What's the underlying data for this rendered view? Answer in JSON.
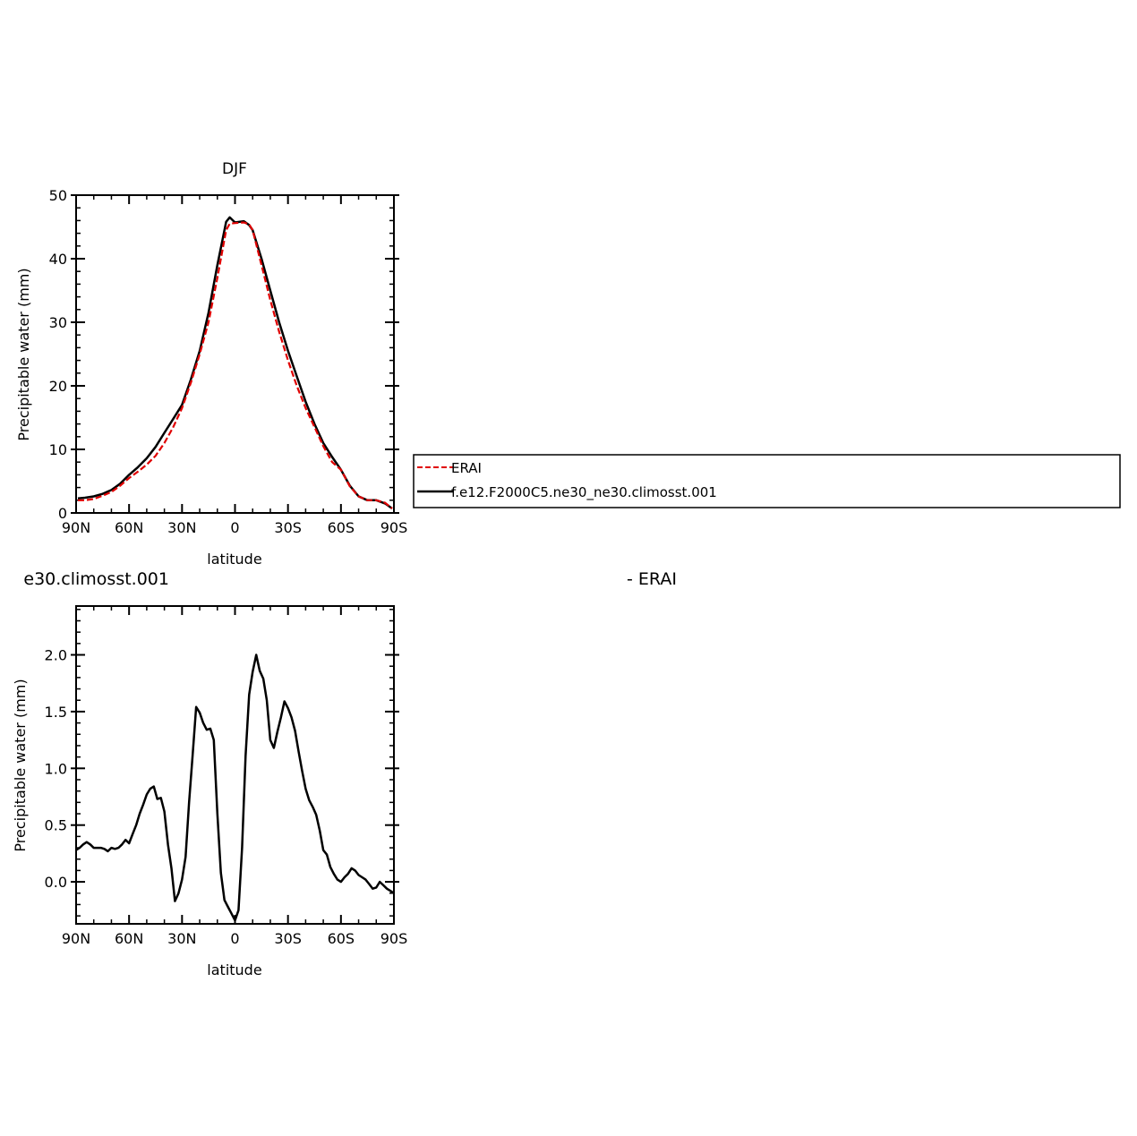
{
  "chart_data": [
    {
      "type": "line",
      "title": "DJF",
      "xlabel": "latitude",
      "ylabel": "Precipitable water (mm)",
      "xlim": [
        90,
        -90
      ],
      "ylim": [
        0,
        50
      ],
      "xticks": [
        90,
        60,
        30,
        0,
        -30,
        -60,
        -90
      ],
      "xtick_labels": [
        "90N",
        "60N",
        "30N",
        "0",
        "30S",
        "60S",
        "90S"
      ],
      "yticks": [
        0,
        10,
        20,
        30,
        40,
        50
      ],
      "ytick_labels": [
        "0",
        "10",
        "20",
        "30",
        "40",
        "50"
      ],
      "legend": "right",
      "series": [
        {
          "name": "ERAI",
          "color": "#e00000",
          "dash": "dashed",
          "x": [
            89,
            85,
            80,
            75,
            70,
            65,
            60,
            55,
            50,
            45,
            40,
            35,
            30,
            25,
            20,
            15,
            10,
            5,
            3,
            0,
            -5,
            -8,
            -10,
            -15,
            -20,
            -25,
            -30,
            -35,
            -40,
            -45,
            -50,
            -55,
            -60,
            -65,
            -70,
            -75,
            -80,
            -85,
            -89
          ],
          "y": [
            2.0,
            2.0,
            2.2,
            2.7,
            3.3,
            4.3,
            5.5,
            6.5,
            7.6,
            9.0,
            11.0,
            13.5,
            16.5,
            20.5,
            25.0,
            30.0,
            37.0,
            44.5,
            45.5,
            45.6,
            45.7,
            45.4,
            44.5,
            39.0,
            33.5,
            28.5,
            24.0,
            20.0,
            16.5,
            13.5,
            10.5,
            8.0,
            6.8,
            4.2,
            2.6,
            2.0,
            2.0,
            1.6,
            0.7
          ]
        },
        {
          "name": "f.e12.F2000C5.ne30_ne30.climosst.001",
          "color": "#000000",
          "dash": "solid",
          "x": [
            89,
            85,
            80,
            75,
            70,
            65,
            60,
            55,
            50,
            45,
            40,
            35,
            30,
            25,
            20,
            15,
            10,
            5,
            3,
            0,
            -5,
            -8,
            -10,
            -15,
            -20,
            -25,
            -30,
            -35,
            -40,
            -45,
            -50,
            -55,
            -60,
            -65,
            -70,
            -75,
            -80,
            -85,
            -89
          ],
          "y": [
            2.3,
            2.4,
            2.6,
            3.0,
            3.6,
            4.6,
            6.0,
            7.2,
            8.6,
            10.4,
            12.6,
            14.8,
            17.0,
            21.0,
            25.5,
            31.5,
            39.0,
            45.8,
            46.5,
            45.7,
            45.9,
            45.3,
            44.5,
            40.0,
            35.0,
            30.0,
            25.5,
            21.5,
            17.5,
            14.0,
            11.0,
            8.8,
            6.8,
            4.3,
            2.6,
            2.0,
            2.0,
            1.5,
            0.7
          ]
        }
      ]
    },
    {
      "type": "line",
      "title": "e30.climosst.001",
      "right_title": "- ERAI",
      "xlabel": "latitude",
      "ylabel": "Precipitable water (mm)",
      "xlim": [
        90,
        -90
      ],
      "ylim": [
        -0.37,
        2.43
      ],
      "xticks": [
        90,
        60,
        30,
        0,
        -30,
        -60,
        -90
      ],
      "xtick_labels": [
        "90N",
        "60N",
        "30N",
        "0",
        "30S",
        "60S",
        "90S"
      ],
      "yticks": [
        0.0,
        0.5,
        1.0,
        1.5,
        2.0
      ],
      "ytick_labels": [
        "0.0",
        "0.5",
        "1.0",
        "1.5",
        "2.0"
      ],
      "series": [
        {
          "name": "",
          "color": "#000000",
          "dash": "solid",
          "x": [
            90,
            88,
            86,
            84,
            82,
            80,
            78,
            76,
            74,
            72,
            70,
            68,
            66,
            64,
            62,
            60,
            58,
            56,
            54,
            52,
            50,
            48,
            46,
            44,
            42,
            40,
            38,
            36,
            34,
            32,
            30,
            28,
            26,
            24,
            22,
            20,
            18,
            16,
            14,
            12,
            10,
            8,
            6,
            4,
            2,
            0,
            -2,
            -4,
            -6,
            -8,
            -10,
            -12,
            -14,
            -16,
            -18,
            -20,
            -22,
            -24,
            -26,
            -28,
            -30,
            -32,
            -34,
            -36,
            -38,
            -40,
            -42,
            -44,
            -46,
            -48,
            -50,
            -52,
            -54,
            -56,
            -58,
            -60,
            -62,
            -64,
            -66,
            -68,
            -70,
            -72,
            -74,
            -76,
            -78,
            -80,
            -82,
            -84,
            -86,
            -88,
            -90
          ],
          "y": [
            0.28,
            0.3,
            0.33,
            0.35,
            0.33,
            0.3,
            0.3,
            0.3,
            0.29,
            0.27,
            0.3,
            0.29,
            0.3,
            0.33,
            0.37,
            0.34,
            0.42,
            0.5,
            0.6,
            0.68,
            0.77,
            0.82,
            0.84,
            0.73,
            0.74,
            0.62,
            0.33,
            0.12,
            -0.17,
            -0.1,
            0.02,
            0.22,
            0.7,
            1.12,
            1.54,
            1.49,
            1.4,
            1.34,
            1.35,
            1.25,
            0.6,
            0.08,
            -0.16,
            -0.22,
            -0.28,
            -0.34,
            -0.25,
            0.3,
            1.11,
            1.65,
            1.85,
            2.0,
            1.86,
            1.79,
            1.6,
            1.25,
            1.18,
            1.32,
            1.45,
            1.59,
            1.53,
            1.45,
            1.33,
            1.15,
            0.98,
            0.82,
            0.72,
            0.66,
            0.59,
            0.45,
            0.28,
            0.24,
            0.13,
            0.07,
            0.02,
            0.0,
            0.04,
            0.07,
            0.12,
            0.1,
            0.06,
            0.04,
            0.02,
            -0.02,
            -0.06,
            -0.05,
            0.0,
            -0.03,
            -0.06,
            -0.08,
            -0.1
          ]
        }
      ]
    }
  ]
}
